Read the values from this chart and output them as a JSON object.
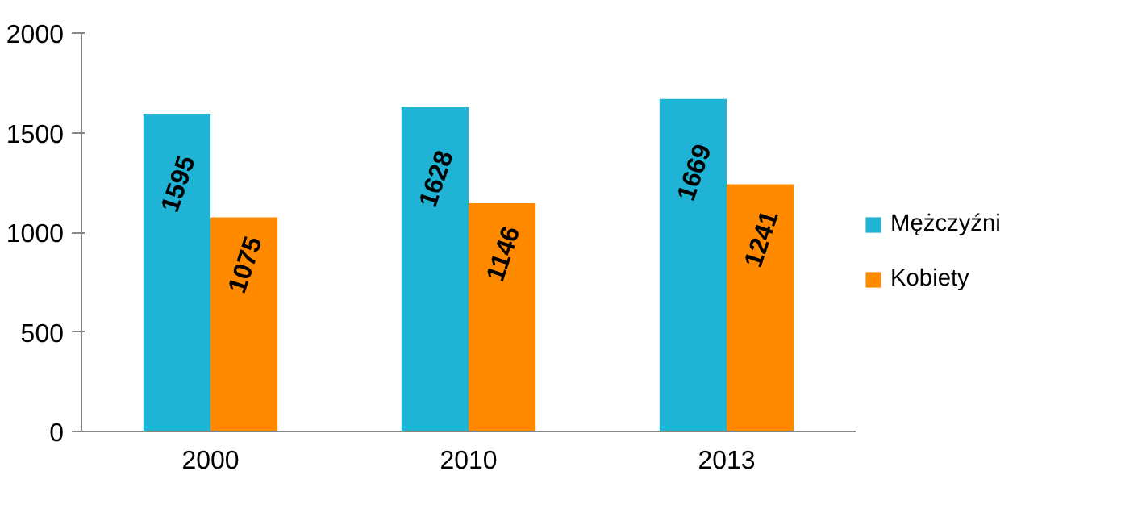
{
  "chart_data": {
    "type": "bar",
    "categories": [
      "2000",
      "2010",
      "2013"
    ],
    "series": [
      {
        "name": "Mężczyźni",
        "color": "#1fb4d6",
        "values": [
          1595,
          1628,
          1669
        ]
      },
      {
        "name": "Kobiety",
        "color": "#ff8a00",
        "values": [
          1075,
          1146,
          1241
        ]
      }
    ],
    "ylim": [
      0,
      2000
    ],
    "yticks": [
      0,
      500,
      1000,
      1500,
      2000
    ],
    "grid": false,
    "legend": "right",
    "data_labels": true
  }
}
